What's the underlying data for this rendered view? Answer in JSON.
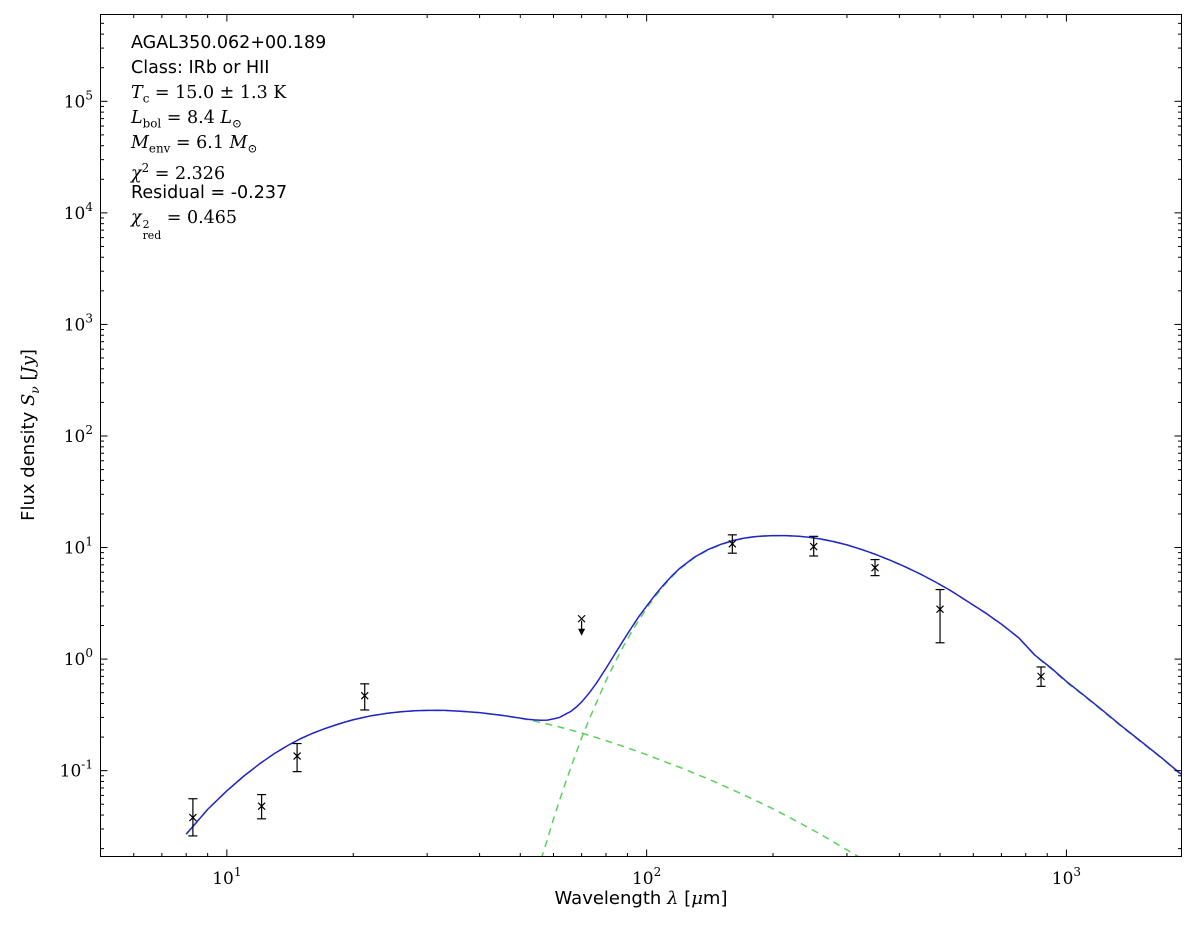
{
  "figure": {
    "background": "#ffffff",
    "annotation": {
      "lines": [
        {
          "font": "sans",
          "parts": [
            {
              "t": "AGAL350.062+00.189"
            }
          ]
        },
        {
          "font": "sans",
          "parts": [
            {
              "t": "Class: IRb or HII"
            }
          ]
        },
        {
          "font": "serif",
          "parts": [
            {
              "t": "T",
              "i": 1
            },
            {
              "t": "c",
              "sub": 1
            },
            {
              "t": " = 15.0 ± 1.3 K"
            }
          ]
        },
        {
          "font": "serif",
          "parts": [
            {
              "t": "L",
              "i": 1
            },
            {
              "t": "bol",
              "sub": 1
            },
            {
              "t": " = 8.4 "
            },
            {
              "t": "L",
              "i": 1
            },
            {
              "t": "⊙",
              "sub": 1
            }
          ]
        },
        {
          "font": "serif",
          "parts": [
            {
              "t": "M",
              "i": 1
            },
            {
              "t": "env",
              "sub": 1
            },
            {
              "t": " = 6.1 "
            },
            {
              "t": "M",
              "i": 1
            },
            {
              "t": "⊙",
              "sub": 1
            }
          ]
        },
        {
          "font": "serif",
          "parts": [
            {
              "t": "χ",
              "i": 1
            },
            {
              "t": "2",
              "sup": 1
            },
            {
              "t": " = 2.326"
            }
          ]
        },
        {
          "font": "sans",
          "parts": [
            {
              "t": "Residual = -0.237"
            }
          ]
        },
        {
          "font": "serif",
          "parts": [
            {
              "t": "χ",
              "i": 1
            },
            {
              "stack": [
                "2",
                "red"
              ]
            },
            {
              "t": " = 0.465"
            }
          ]
        }
      ]
    }
  },
  "chart_data": {
    "type": "line",
    "title": "",
    "xscale": "log",
    "yscale": "log",
    "xlim": [
      5,
      1880
    ],
    "ylim": [
      0.017,
      600000
    ],
    "grid": false,
    "legend": null,
    "xlabel_parts": [
      {
        "t": "Wavelength ",
        "f": "sans"
      },
      {
        "t": "λ",
        "i": 1
      },
      {
        "t": " [",
        "f": "sans"
      },
      {
        "t": "μ",
        "i": 1
      },
      {
        "t": "m",
        "f": "sans"
      },
      {
        "t": "]",
        "f": "sans"
      }
    ],
    "ylabel_parts": [
      {
        "t": "Flux density ",
        "f": "sans"
      },
      {
        "t": "S",
        "i": 1
      },
      {
        "t": "ν",
        "sub": 1,
        "i": 1
      },
      {
        "t": " [",
        "f": "sans"
      },
      {
        "t": "Jy",
        "i": 1
      },
      {
        "t": "]",
        "f": "sans"
      }
    ],
    "x_ticks": [
      {
        "v": 10,
        "exp": "1"
      },
      {
        "v": 100,
        "exp": "2"
      },
      {
        "v": 1000,
        "exp": "3"
      }
    ],
    "y_ticks": [
      {
        "v": 0.1,
        "exp": "-1"
      },
      {
        "v": 1,
        "exp": "0"
      },
      {
        "v": 10,
        "exp": "1"
      },
      {
        "v": 100,
        "exp": "2"
      },
      {
        "v": 1000,
        "exp": "3"
      },
      {
        "v": 10000,
        "exp": "4"
      },
      {
        "v": 100000,
        "exp": "5"
      }
    ],
    "colors": {
      "total": "#2323cc",
      "component": "#5bd05b",
      "data": "#000000"
    },
    "series": [
      {
        "name": "warm-component",
        "style": "dashed",
        "color": "#5bd05b",
        "points": [
          [
            8.0,
            0.027
          ],
          [
            8.5,
            0.035
          ],
          [
            9,
            0.045
          ],
          [
            10,
            0.066
          ],
          [
            11,
            0.09
          ],
          [
            12,
            0.116
          ],
          [
            13,
            0.143
          ],
          [
            14,
            0.169
          ],
          [
            15,
            0.194
          ],
          [
            16,
            0.216
          ],
          [
            17,
            0.236
          ],
          [
            18,
            0.254
          ],
          [
            19,
            0.271
          ],
          [
            20,
            0.286
          ],
          [
            22,
            0.31
          ],
          [
            24,
            0.326
          ],
          [
            26,
            0.337
          ],
          [
            28,
            0.344
          ],
          [
            30,
            0.347
          ],
          [
            33,
            0.347
          ],
          [
            36,
            0.341
          ],
          [
            40,
            0.331
          ],
          [
            45,
            0.314
          ],
          [
            50,
            0.295
          ],
          [
            55,
            0.274
          ],
          [
            60,
            0.254
          ],
          [
            65,
            0.235
          ],
          [
            70,
            0.217
          ],
          [
            75,
            0.201
          ],
          [
            80,
            0.186
          ],
          [
            90,
            0.16
          ],
          [
            100,
            0.139
          ],
          [
            110,
            0.121
          ],
          [
            120,
            0.107
          ],
          [
            140,
            0.0845
          ],
          [
            160,
            0.0675
          ],
          [
            180,
            0.055
          ],
          [
            200,
            0.0455
          ],
          [
            230,
            0.0345
          ],
          [
            260,
            0.0268
          ],
          [
            300,
            0.0195
          ],
          [
            340,
            0.0148
          ],
          [
            380,
            0.0116
          ]
        ]
      },
      {
        "name": "cold-component",
        "style": "dashed",
        "color": "#5bd05b",
        "points": [
          [
            52,
            0.006
          ],
          [
            54,
            0.01
          ],
          [
            56,
            0.016
          ],
          [
            58,
            0.024
          ],
          [
            60,
            0.037
          ],
          [
            62,
            0.054
          ],
          [
            64,
            0.077
          ],
          [
            66,
            0.107
          ],
          [
            68,
            0.146
          ],
          [
            70,
            0.196
          ],
          [
            73,
            0.29
          ],
          [
            76,
            0.41
          ],
          [
            80,
            0.64
          ],
          [
            84,
            0.93
          ],
          [
            88,
            1.3
          ],
          [
            92,
            1.74
          ],
          [
            96,
            2.26
          ],
          [
            100,
            2.85
          ],
          [
            105,
            3.67
          ],
          [
            110,
            4.56
          ],
          [
            115,
            5.49
          ],
          [
            120,
            6.43
          ],
          [
            130,
            8.11
          ],
          [
            140,
            9.51
          ],
          [
            150,
            10.59
          ],
          [
            160,
            11.45
          ],
          [
            170,
            12.05
          ],
          [
            180,
            12.45
          ],
          [
            190,
            12.66
          ],
          [
            200,
            12.76
          ],
          [
            215,
            12.76
          ],
          [
            230,
            12.61
          ],
          [
            245,
            12.3
          ],
          [
            260,
            11.9
          ],
          [
            280,
            11.25
          ],
          [
            300,
            10.55
          ],
          [
            325,
            9.6
          ],
          [
            350,
            8.7
          ],
          [
            380,
            7.7
          ],
          [
            410,
            6.8
          ],
          [
            450,
            5.75
          ],
          [
            490,
            4.85
          ],
          [
            530,
            4.1
          ],
          [
            580,
            3.3
          ],
          [
            640,
            2.6
          ],
          [
            700,
            2.05
          ],
          [
            770,
            1.55
          ],
          [
            840,
            1.09
          ],
          [
            870,
            0.97
          ],
          [
            920,
            0.82
          ],
          [
            1000,
            0.62
          ],
          [
            1100,
            0.47
          ],
          [
            1200,
            0.36
          ],
          [
            1350,
            0.25
          ],
          [
            1500,
            0.183
          ],
          [
            1700,
            0.126
          ],
          [
            1850,
            0.096
          ],
          [
            2000,
            0.077
          ]
        ]
      },
      {
        "name": "total-model",
        "style": "solid",
        "color": "#2323cc",
        "points": [
          [
            8.0,
            0.027
          ],
          [
            8.5,
            0.035
          ],
          [
            9,
            0.045
          ],
          [
            10,
            0.066
          ],
          [
            11,
            0.09
          ],
          [
            12,
            0.116
          ],
          [
            13,
            0.143
          ],
          [
            14,
            0.169
          ],
          [
            15,
            0.194
          ],
          [
            16,
            0.216
          ],
          [
            17,
            0.236
          ],
          [
            18,
            0.254
          ],
          [
            19,
            0.271
          ],
          [
            20,
            0.286
          ],
          [
            22,
            0.31
          ],
          [
            24,
            0.326
          ],
          [
            26,
            0.337
          ],
          [
            28,
            0.344
          ],
          [
            30,
            0.347
          ],
          [
            33,
            0.347
          ],
          [
            36,
            0.341
          ],
          [
            40,
            0.331
          ],
          [
            45,
            0.314
          ],
          [
            50,
            0.296
          ],
          [
            52,
            0.289
          ],
          [
            54,
            0.285
          ],
          [
            56,
            0.283
          ],
          [
            58,
            0.284
          ],
          [
            60,
            0.291
          ],
          [
            62,
            0.3
          ],
          [
            64,
            0.32
          ],
          [
            66,
            0.34
          ],
          [
            68,
            0.372
          ],
          [
            70,
            0.413
          ],
          [
            73,
            0.497
          ],
          [
            76,
            0.611
          ],
          [
            80,
            0.826
          ],
          [
            84,
            1.11
          ],
          [
            88,
            1.47
          ],
          [
            92,
            1.91
          ],
          [
            96,
            2.43
          ],
          [
            100,
            2.99
          ],
          [
            105,
            3.8
          ],
          [
            110,
            4.68
          ],
          [
            115,
            5.6
          ],
          [
            120,
            6.53
          ],
          [
            130,
            8.2
          ],
          [
            140,
            9.59
          ],
          [
            150,
            10.66
          ],
          [
            160,
            11.52
          ],
          [
            170,
            12.11
          ],
          [
            180,
            12.5
          ],
          [
            190,
            12.7
          ],
          [
            200,
            12.8
          ],
          [
            215,
            12.79
          ],
          [
            230,
            12.64
          ],
          [
            245,
            12.33
          ],
          [
            260,
            11.93
          ],
          [
            280,
            11.27
          ],
          [
            300,
            10.57
          ],
          [
            325,
            9.61
          ],
          [
            350,
            8.71
          ],
          [
            380,
            7.71
          ],
          [
            410,
            6.81
          ],
          [
            450,
            5.76
          ],
          [
            490,
            4.86
          ],
          [
            530,
            4.11
          ],
          [
            580,
            3.31
          ],
          [
            640,
            2.61
          ],
          [
            700,
            2.06
          ],
          [
            770,
            1.55
          ],
          [
            840,
            1.09
          ],
          [
            870,
            0.98
          ],
          [
            920,
            0.83
          ],
          [
            1000,
            0.63
          ],
          [
            1100,
            0.475
          ],
          [
            1200,
            0.365
          ],
          [
            1350,
            0.253
          ],
          [
            1500,
            0.185
          ],
          [
            1700,
            0.127
          ],
          [
            1850,
            0.097
          ],
          [
            2000,
            0.078
          ]
        ]
      }
    ],
    "data_points": [
      {
        "wl": 8.3,
        "flux": 0.038,
        "lo": 0.026,
        "hi": 0.056
      },
      {
        "wl": 12.1,
        "flux": 0.048,
        "lo": 0.037,
        "hi": 0.061
      },
      {
        "wl": 14.7,
        "flux": 0.135,
        "lo": 0.098,
        "hi": 0.175
      },
      {
        "wl": 21.3,
        "flux": 0.47,
        "lo": 0.35,
        "hi": 0.6
      },
      {
        "wl": 70,
        "flux": 2.3,
        "limit": "upper"
      },
      {
        "wl": 160,
        "flux": 10.8,
        "lo": 8.9,
        "hi": 13.0
      },
      {
        "wl": 250,
        "flux": 10.2,
        "lo": 8.4,
        "hi": 12.6
      },
      {
        "wl": 350,
        "flux": 6.6,
        "lo": 5.6,
        "hi": 7.8
      },
      {
        "wl": 500,
        "flux": 2.8,
        "lo": 1.4,
        "hi": 4.2
      },
      {
        "wl": 870,
        "flux": 0.7,
        "lo": 0.57,
        "hi": 0.85
      }
    ]
  }
}
